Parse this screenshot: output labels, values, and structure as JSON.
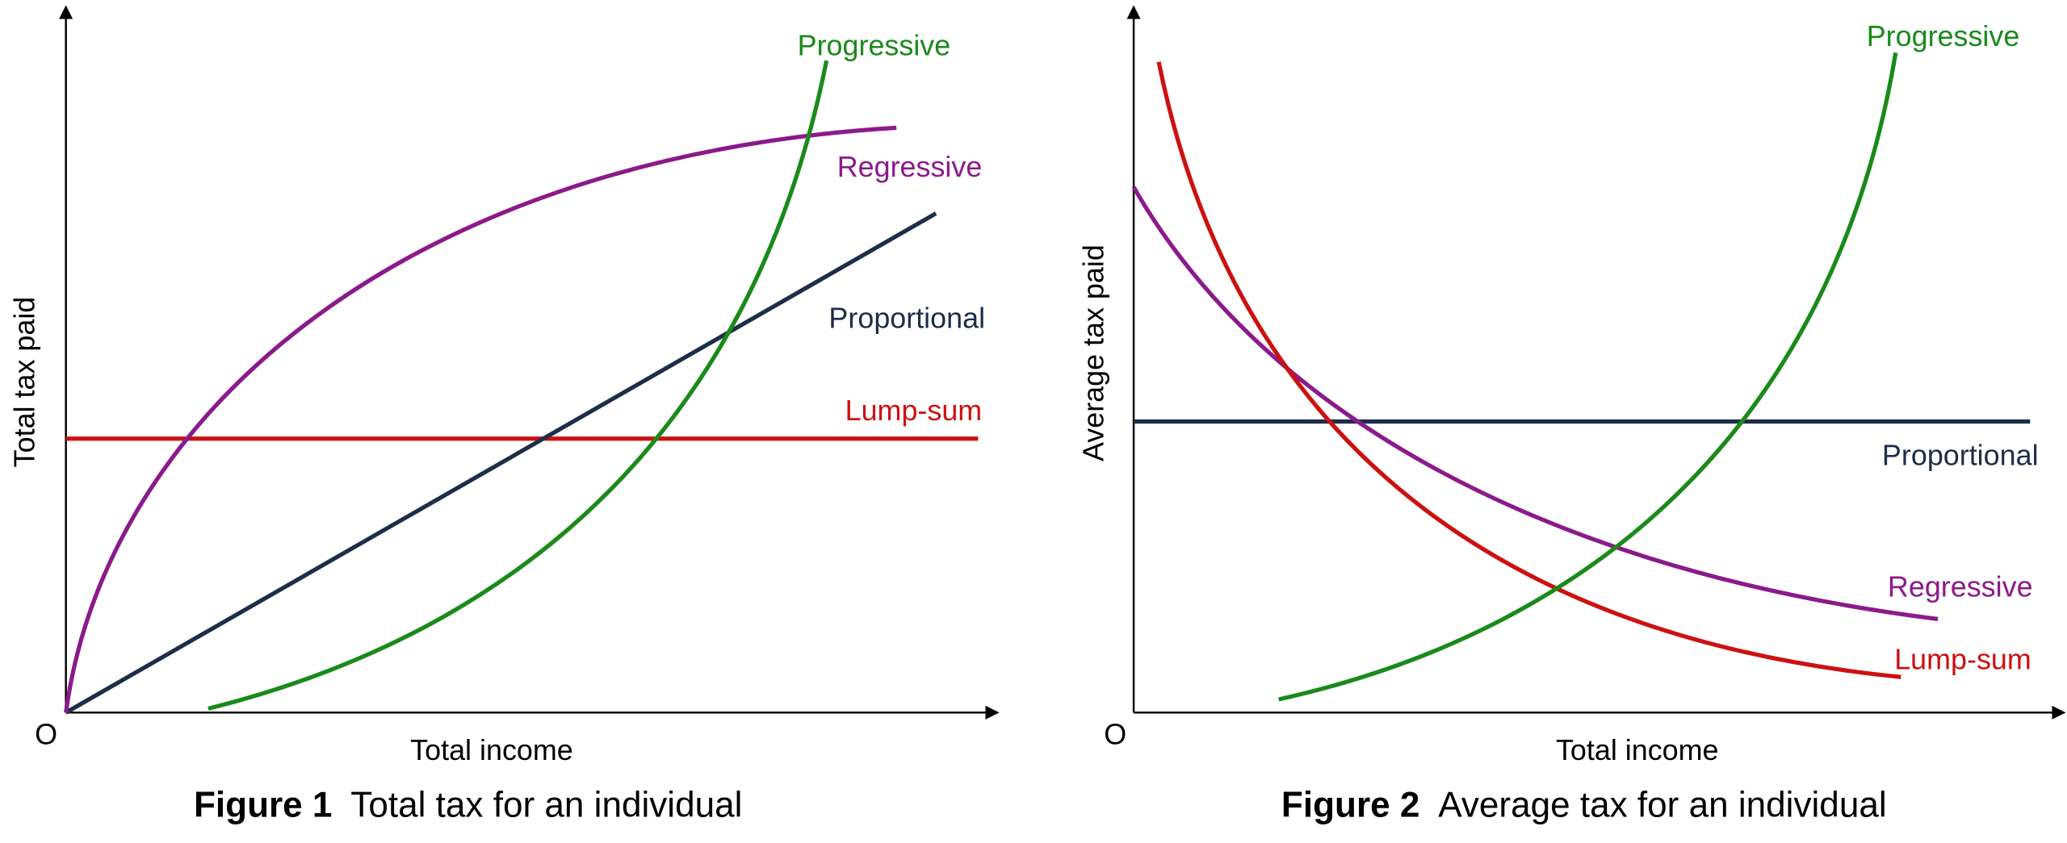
{
  "figures": [
    {
      "caption_number": "Figure 1",
      "caption_text": "Total tax for an individual",
      "y_axis_label": "Total tax paid",
      "x_axis_label": "Total income",
      "origin_label": "O",
      "curves": [
        {
          "label": "Progressive"
        },
        {
          "label": "Regressive"
        },
        {
          "label": "Proportional"
        },
        {
          "label": "Lump-sum"
        }
      ]
    },
    {
      "caption_number": "Figure 2",
      "caption_text": "Average tax for an individual",
      "y_axis_label": "Average tax paid",
      "x_axis_label": "Total income",
      "origin_label": "O",
      "curves": [
        {
          "label": "Progressive"
        },
        {
          "label": "Proportional"
        },
        {
          "label": "Regressive"
        },
        {
          "label": "Lump-sum"
        }
      ]
    }
  ]
}
